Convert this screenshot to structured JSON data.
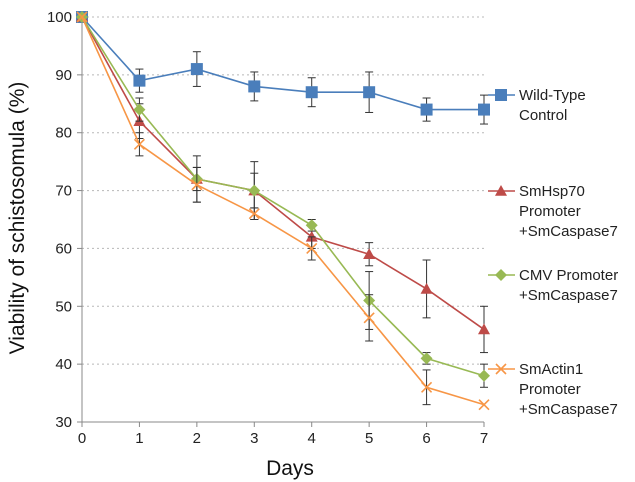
{
  "chart_data": {
    "type": "line",
    "xlabel": "Days",
    "ylabel": "Viability of schistosomula (%)",
    "x": [
      0,
      1,
      2,
      3,
      4,
      5,
      6,
      7
    ],
    "xlim": [
      0,
      7
    ],
    "ylim": [
      30,
      100
    ],
    "yticks": [
      30,
      40,
      50,
      60,
      70,
      80,
      90,
      100
    ],
    "grid": "horizontal dotted",
    "legend": "right",
    "series": [
      {
        "name": "Wild-Type Control",
        "legend_lines": [
          "Wild-Type",
          "Control"
        ],
        "color": "#4a7ebb",
        "marker": "square",
        "values": [
          100,
          89,
          91,
          88,
          87,
          87,
          84,
          84
        ],
        "errors": [
          0,
          2,
          3,
          2.5,
          2.5,
          3.5,
          2,
          2.5
        ]
      },
      {
        "name": "SmHsp70 Promoter +SmCaspase7",
        "legend_lines": [
          "SmHsp70",
          "Promoter",
          "+SmCaspase7"
        ],
        "color": "#be4b48",
        "marker": "triangle",
        "values": [
          100,
          82,
          72,
          70,
          62,
          59,
          53,
          46
        ],
        "errors": [
          0,
          3,
          2,
          3,
          2,
          2,
          5,
          4
        ]
      },
      {
        "name": "CMV Promoter +SmCaspase7",
        "legend_lines": [
          "CMV Promoter",
          "+SmCaspase7"
        ],
        "color": "#98b954",
        "marker": "diamond",
        "values": [
          100,
          84,
          72,
          70,
          64,
          51,
          41,
          38
        ],
        "errors": [
          0,
          2,
          4,
          5,
          1,
          5,
          1,
          2
        ]
      },
      {
        "name": "SmActin1 Promoter +SmCaspase7",
        "legend_lines": [
          "SmActin1",
          "Promoter",
          "+SmCaspase7"
        ],
        "color": "#f79646",
        "marker": "x",
        "values": [
          100,
          78,
          71,
          66,
          60,
          48,
          36,
          33
        ],
        "errors": [
          0,
          2,
          3,
          1,
          2,
          4,
          3,
          0
        ]
      }
    ]
  }
}
